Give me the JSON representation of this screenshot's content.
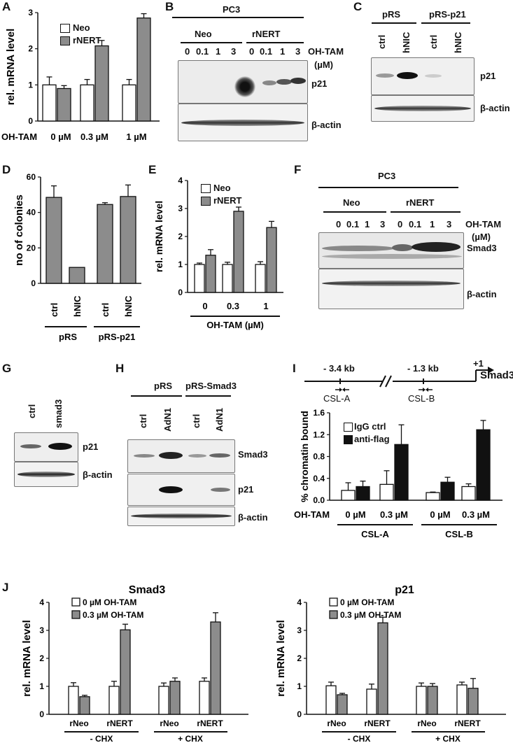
{
  "panels": {
    "A": "A",
    "B": "B",
    "C": "C",
    "D": "D",
    "E": "E",
    "F": "F",
    "G": "G",
    "H": "H",
    "I": "I",
    "J": "J"
  },
  "common": {
    "neo": "Neo",
    "rnert": "rNERT",
    "ohtam": "OH-TAM",
    "ohtam_um": "OH-TAM (µM)",
    "um": "(µM)",
    "p21": "p21",
    "bactin": "β-actin",
    "smad3": "Smad3",
    "pc3": "PC3",
    "relmrna": "rel. mRNA level",
    "ctrl": "ctrl",
    "hnic": "hNIC",
    "pRS": "pRS",
    "pRSp21": "pRS-p21",
    "pRSsmad3": "pRS-Smad3",
    "adn1": "AdN1",
    "smad3lc": "smad3",
    "colonies": "no of colonies",
    "chromatin": "% chromatin bound",
    "igg": "IgG ctrl",
    "antiflag": "anti-flag",
    "cslA": "CSL-A",
    "cslB": "CSL-B",
    "kb34": "- 3.4 kb",
    "kb13": "- 1.3 kb",
    "plus1": "+1",
    "dose": [
      "0",
      "0.1",
      "1",
      "3"
    ],
    "zero_um": "0 µM",
    "p3_um": "0.3 µM",
    "one_um": "1 µM",
    "oh0": "0 µM OH-TAM",
    "oh03": "0.3 µM OH-TAM",
    "rneo": "rNeo",
    "mchx": "- CHX",
    "pchx": "+ CHX",
    "j_smad3": "Smad3",
    "j_p21": "p21"
  },
  "chart_data": [
    {
      "panel": "A",
      "type": "bar",
      "ylabel": "rel. mRNA level",
      "ylim": [
        0,
        3
      ],
      "yticks": [
        0,
        1,
        2,
        3
      ],
      "categories": [
        "0 µM",
        "0.3 µM",
        "1 µM"
      ],
      "series": [
        {
          "name": "Neo",
          "values": [
            1.0,
            1.0,
            1.0
          ],
          "err": [
            0.22,
            0.15,
            0.15
          ],
          "color": "#ffffff"
        },
        {
          "name": "rNERT",
          "values": [
            0.9,
            2.08,
            2.85
          ],
          "err": [
            0.08,
            0.15,
            0.12
          ],
          "color": "#8c8c8c"
        }
      ]
    },
    {
      "panel": "D",
      "type": "bar",
      "ylabel": "no of colonies",
      "ylim": [
        0,
        60
      ],
      "yticks": [
        0,
        20,
        40,
        60
      ],
      "categories": [
        "ctrl",
        "hNIC",
        "ctrl",
        "hNIC"
      ],
      "values": [
        48.5,
        9,
        44.5,
        49
      ],
      "err": [
        6.5,
        0,
        1,
        6.5
      ]
    },
    {
      "panel": "E",
      "type": "bar",
      "ylabel": "rel. mRNA level",
      "ylim": [
        0,
        4
      ],
      "yticks": [
        0,
        1,
        2,
        3,
        4
      ],
      "categories": [
        "0",
        "0.3",
        "1"
      ],
      "series": [
        {
          "name": "Neo",
          "values": [
            1.0,
            1.0,
            1.0
          ],
          "err": [
            0.05,
            0.08,
            0.1
          ],
          "color": "#ffffff"
        },
        {
          "name": "rNERT",
          "values": [
            1.33,
            2.9,
            2.32
          ],
          "err": [
            0.2,
            0.15,
            0.22
          ],
          "color": "#8c8c8c"
        }
      ]
    },
    {
      "panel": "I",
      "type": "bar",
      "ylabel": "% chromatin bound",
      "ylim": [
        0,
        1.6
      ],
      "yticks": [
        0.0,
        0.4,
        0.8,
        1.2,
        1.6
      ],
      "categories": [
        "0 µM",
        "0.3 µM",
        "0 µM",
        "0.3 µM"
      ],
      "series": [
        {
          "name": "IgG ctrl",
          "values": [
            0.18,
            0.29,
            0.14,
            0.25
          ],
          "err": [
            0.14,
            0.25,
            0.01,
            0.05
          ],
          "color": "#ffffff"
        },
        {
          "name": "anti-flag",
          "values": [
            0.25,
            1.02,
            0.33,
            1.29
          ],
          "err": [
            0.1,
            0.36,
            0.09,
            0.17
          ],
          "color": "#111111"
        }
      ]
    },
    {
      "panel": "J-left",
      "type": "bar",
      "title": "Smad3",
      "ylabel": "rel. mRNA level",
      "ylim": [
        0,
        4
      ],
      "yticks": [
        0,
        1,
        2,
        3,
        4
      ],
      "categories": [
        "rNeo",
        "rNERT",
        "rNeo",
        "rNERT"
      ],
      "series": [
        {
          "name": "0 µM OH-TAM",
          "values": [
            1.0,
            1.0,
            1.0,
            1.18
          ],
          "err": [
            0.13,
            0.18,
            0.12,
            0.12
          ],
          "color": "#ffffff"
        },
        {
          "name": "0.3 µM OH-TAM",
          "values": [
            0.63,
            3.02,
            1.18,
            3.3
          ],
          "err": [
            0.05,
            0.2,
            0.12,
            0.33
          ],
          "color": "#8c8c8c"
        }
      ]
    },
    {
      "panel": "J-right",
      "type": "bar",
      "title": "p21",
      "ylabel": "rel. mRNA level",
      "ylim": [
        0,
        4
      ],
      "yticks": [
        0,
        1,
        2,
        3,
        4
      ],
      "categories": [
        "rNeo",
        "rNERT",
        "rNeo",
        "rNERT"
      ],
      "series": [
        {
          "name": "0 µM OH-TAM",
          "values": [
            1.02,
            0.9,
            1.0,
            1.05
          ],
          "err": [
            0.13,
            0.18,
            0.12,
            0.1
          ],
          "color": "#ffffff"
        },
        {
          "name": "0.3 µM OH-TAM",
          "values": [
            0.7,
            3.27,
            1.0,
            0.93
          ],
          "err": [
            0.05,
            0.2,
            0.1,
            0.35
          ],
          "color": "#8c8c8c"
        }
      ]
    }
  ]
}
